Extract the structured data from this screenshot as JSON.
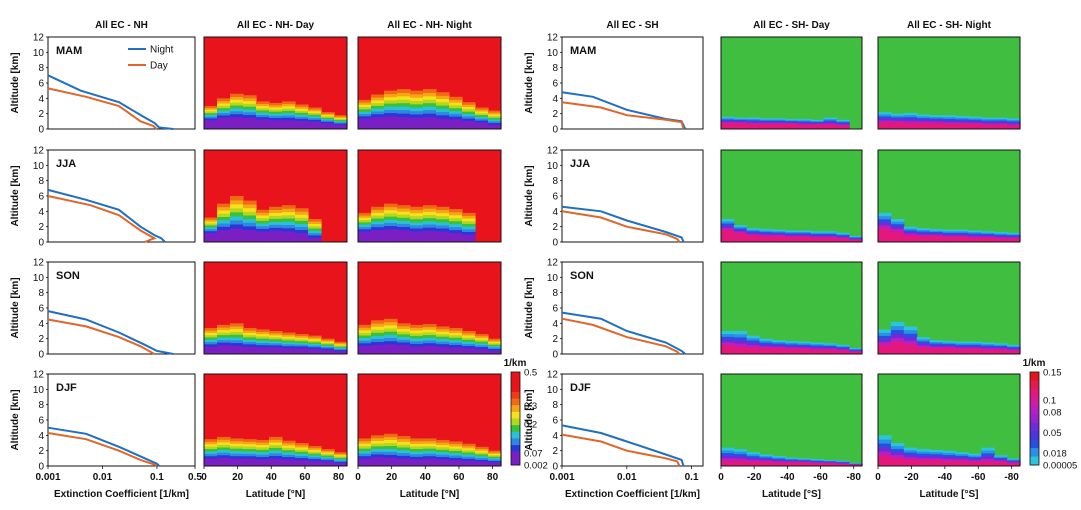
{
  "chart_data": {
    "type": "multi-panel",
    "colors": {
      "night": "#1f6fc2",
      "day": "#e0662a",
      "heat_low": "#8a1ccc",
      "heat_high": "#e8131b",
      "sh_high": "#3fbe3f"
    },
    "columns": [
      {
        "title": "All EC - NH",
        "kind": "profile"
      },
      {
        "title": "All EC - NH- Day",
        "kind": "heatmap"
      },
      {
        "title": "All EC - NH- Night",
        "kind": "heatmap"
      },
      {
        "title": "All EC - SH",
        "kind": "profile"
      },
      {
        "title": "All EC - SH- Day",
        "kind": "heatmap"
      },
      {
        "title": "All EC - SH- Night",
        "kind": "heatmap"
      }
    ],
    "seasons": [
      "MAM",
      "JJA",
      "SON",
      "DJF"
    ],
    "y_axis": {
      "label": "Altitude [km]",
      "range": [
        0,
        12
      ],
      "ticks": [
        "0",
        "2",
        "4",
        "6",
        "8",
        "10",
        "12"
      ]
    },
    "legend": {
      "night": "Night",
      "day": "Day",
      "position": "top-right"
    },
    "nh_profile_axis": {
      "xlabel": "Extinction Coefficient   [1/km]",
      "scale": "log",
      "range": [
        0.001,
        0.5
      ],
      "ticks": [
        "0.001",
        "0.01",
        "0.1",
        "0.5"
      ]
    },
    "sh_profile_axis": {
      "xlabel": "Extinction Coefficient   [1/km]",
      "scale": "log",
      "range": [
        0.001,
        0.15
      ],
      "ticks": [
        "0.001",
        "0.01",
        "0.1"
      ]
    },
    "nh_lat_axis": {
      "xlabel": "Latitude [°N]",
      "range": [
        0,
        85
      ],
      "ticks": [
        "0",
        "20",
        "40",
        "60",
        "80"
      ]
    },
    "sh_lat_axis": {
      "xlabel": "Latitude [°S]",
      "range": [
        0,
        -85
      ],
      "ticks": [
        "0",
        "-20",
        "-40",
        "-60",
        "-80"
      ]
    },
    "nh_colorbar": {
      "unit": "1/km",
      "ticks": [
        "0.5",
        "0.3",
        "0.2",
        "0.07",
        "0.002"
      ]
    },
    "sh_colorbar": {
      "unit": "1/km",
      "ticks": [
        "0.15",
        "0.1",
        "0.08",
        "0.05",
        "0.018",
        "0.00005"
      ]
    },
    "nh_profiles": [
      {
        "night": [
          [
            0.001,
            7.0
          ],
          [
            0.004,
            5.0
          ],
          [
            0.02,
            3.5
          ],
          [
            0.06,
            1.5
          ],
          [
            0.09,
            0.8
          ],
          [
            0.11,
            0.2
          ],
          [
            0.2,
            0.0
          ]
        ],
        "day": [
          [
            0.001,
            5.3
          ],
          [
            0.005,
            4.2
          ],
          [
            0.02,
            3.0
          ],
          [
            0.05,
            1.0
          ],
          [
            0.085,
            0.4
          ],
          [
            0.1,
            0.0
          ]
        ]
      },
      {
        "night": [
          [
            0.001,
            6.8
          ],
          [
            0.005,
            5.5
          ],
          [
            0.02,
            4.2
          ],
          [
            0.05,
            2.0
          ],
          [
            0.09,
            0.9
          ],
          [
            0.12,
            0.5
          ],
          [
            0.14,
            0.0
          ]
        ],
        "day": [
          [
            0.001,
            6.0
          ],
          [
            0.006,
            4.8
          ],
          [
            0.02,
            3.5
          ],
          [
            0.05,
            1.5
          ],
          [
            0.09,
            0.5
          ],
          [
            0.06,
            0.0
          ]
        ]
      },
      {
        "night": [
          [
            0.001,
            5.6
          ],
          [
            0.005,
            4.5
          ],
          [
            0.02,
            2.8
          ],
          [
            0.06,
            1.2
          ],
          [
            0.1,
            0.4
          ],
          [
            0.2,
            0.0
          ]
        ],
        "day": [
          [
            0.001,
            4.5
          ],
          [
            0.005,
            3.6
          ],
          [
            0.02,
            2.2
          ],
          [
            0.05,
            1.0
          ],
          [
            0.08,
            0.2
          ],
          [
            0.09,
            0.0
          ]
        ]
      },
      {
        "night": [
          [
            0.001,
            5.0
          ],
          [
            0.005,
            4.2
          ],
          [
            0.02,
            2.5
          ],
          [
            0.06,
            1.0
          ],
          [
            0.1,
            0.3
          ],
          [
            0.11,
            0.0
          ]
        ],
        "day": [
          [
            0.001,
            4.3
          ],
          [
            0.005,
            3.5
          ],
          [
            0.02,
            2.0
          ],
          [
            0.05,
            0.8
          ],
          [
            0.09,
            0.2
          ],
          [
            0.1,
            0.0
          ]
        ]
      }
    ],
    "sh_profiles": [
      {
        "night": [
          [
            0.001,
            4.8
          ],
          [
            0.003,
            4.2
          ],
          [
            0.01,
            2.5
          ],
          [
            0.04,
            1.3
          ],
          [
            0.07,
            1.0
          ],
          [
            0.08,
            0.0
          ]
        ],
        "day": [
          [
            0.001,
            3.5
          ],
          [
            0.004,
            2.8
          ],
          [
            0.01,
            1.8
          ],
          [
            0.04,
            1.2
          ],
          [
            0.07,
            0.9
          ],
          [
            0.075,
            0.0
          ]
        ]
      },
      {
        "night": [
          [
            0.001,
            4.6
          ],
          [
            0.004,
            4.0
          ],
          [
            0.01,
            2.8
          ],
          [
            0.04,
            1.3
          ],
          [
            0.07,
            0.6
          ],
          [
            0.075,
            0.0
          ]
        ],
        "day": [
          [
            0.001,
            4.0
          ],
          [
            0.004,
            3.2
          ],
          [
            0.01,
            2.0
          ],
          [
            0.04,
            1.0
          ],
          [
            0.06,
            0.4
          ],
          [
            0.065,
            0.0
          ]
        ]
      },
      {
        "night": [
          [
            0.001,
            5.4
          ],
          [
            0.004,
            4.6
          ],
          [
            0.01,
            3.0
          ],
          [
            0.04,
            1.5
          ],
          [
            0.07,
            0.4
          ],
          [
            0.08,
            0.0
          ]
        ],
        "day": [
          [
            0.001,
            4.6
          ],
          [
            0.003,
            3.8
          ],
          [
            0.01,
            2.2
          ],
          [
            0.04,
            1.0
          ],
          [
            0.06,
            0.3
          ],
          [
            0.065,
            0.0
          ]
        ]
      },
      {
        "night": [
          [
            0.001,
            5.3
          ],
          [
            0.004,
            4.3
          ],
          [
            0.01,
            3.2
          ],
          [
            0.04,
            1.5
          ],
          [
            0.07,
            0.8
          ],
          [
            0.075,
            0.0
          ]
        ],
        "day": [
          [
            0.001,
            4.1
          ],
          [
            0.004,
            3.2
          ],
          [
            0.01,
            2.0
          ],
          [
            0.04,
            1.0
          ],
          [
            0.06,
            0.6
          ],
          [
            0.065,
            0.0
          ]
        ]
      }
    ],
    "heat_panels": {
      "nh_day": [
        {
          "layer_top_km": [
            3.0,
            4.0,
            4.6,
            4.4,
            3.6,
            3.4,
            3.6,
            3.2,
            2.8,
            2.2,
            1.8
          ],
          "low_top_km": [
            1.2,
            1.5,
            1.6,
            1.5,
            1.3,
            1.2,
            1.2,
            1.1,
            1.0,
            0.8,
            0.6
          ]
        },
        {
          "layer_top_km": [
            3.2,
            5.0,
            6.0,
            5.4,
            4.2,
            4.6,
            4.8,
            4.4,
            3.0,
            0.0,
            0.0
          ],
          "low_top_km": [
            1.2,
            1.6,
            1.8,
            1.6,
            1.4,
            1.5,
            1.4,
            1.2,
            0.6,
            0.0,
            0.0
          ]
        },
        {
          "layer_top_km": [
            3.4,
            3.8,
            4.0,
            3.4,
            3.2,
            3.0,
            2.8,
            2.6,
            2.4,
            2.0,
            1.6
          ],
          "low_top_km": [
            1.0,
            1.2,
            1.1,
            1.0,
            0.9,
            0.9,
            0.8,
            0.8,
            0.7,
            0.6,
            0.4
          ]
        },
        {
          "layer_top_km": [
            3.5,
            3.8,
            3.6,
            3.5,
            3.4,
            3.8,
            3.3,
            3.0,
            2.6,
            2.2,
            1.8
          ],
          "low_top_km": [
            1.0,
            1.1,
            1.0,
            1.0,
            0.9,
            1.0,
            0.9,
            0.8,
            0.7,
            0.6,
            0.4
          ]
        }
      ],
      "nh_night": [
        {
          "layer_top_km": [
            3.8,
            4.5,
            5.0,
            5.2,
            5.0,
            5.2,
            4.8,
            4.2,
            3.5,
            2.8,
            2.4
          ],
          "low_top_km": [
            1.4,
            1.6,
            1.7,
            1.6,
            1.5,
            1.6,
            1.4,
            1.3,
            1.1,
            0.9,
            0.6
          ]
        },
        {
          "layer_top_km": [
            3.8,
            4.6,
            5.0,
            4.8,
            4.6,
            4.8,
            4.6,
            4.3,
            3.8,
            0.0,
            0.0
          ],
          "low_top_km": [
            1.4,
            1.6,
            1.7,
            1.6,
            1.4,
            1.5,
            1.4,
            1.2,
            1.0,
            0.0,
            0.0
          ]
        },
        {
          "layer_top_km": [
            3.8,
            4.4,
            4.6,
            4.0,
            3.8,
            3.9,
            3.6,
            3.4,
            3.0,
            2.6,
            2.0
          ],
          "low_top_km": [
            1.1,
            1.2,
            1.3,
            1.2,
            1.0,
            1.1,
            1.0,
            0.9,
            0.8,
            0.7,
            0.5
          ]
        },
        {
          "layer_top_km": [
            3.6,
            4.0,
            4.2,
            3.9,
            3.6,
            3.6,
            3.4,
            3.2,
            2.9,
            2.5,
            2.0
          ],
          "low_top_km": [
            1.0,
            1.2,
            1.1,
            1.0,
            0.9,
            1.0,
            0.9,
            0.8,
            0.7,
            0.6,
            0.5
          ]
        }
      ],
      "sh_day": [
        {
          "layer_top_km": [
            1.6,
            1.5,
            1.5,
            1.4,
            1.4,
            1.3,
            1.3,
            1.2,
            1.5,
            1.2,
            0.0
          ],
          "low_top_km": [
            0.8,
            0.8,
            0.7,
            0.7,
            0.7,
            0.7,
            0.6,
            0.6,
            0.6,
            0.5,
            0.0
          ]
        },
        {
          "layer_top_km": [
            3.0,
            2.2,
            1.8,
            1.7,
            1.6,
            1.5,
            1.5,
            1.4,
            1.4,
            1.2,
            0.8
          ],
          "low_top_km": [
            1.6,
            1.2,
            0.9,
            0.8,
            0.8,
            0.7,
            0.7,
            0.6,
            0.6,
            0.5,
            0.3
          ]
        },
        {
          "layer_top_km": [
            3.0,
            3.0,
            2.4,
            2.0,
            1.8,
            1.7,
            1.6,
            1.5,
            1.4,
            1.2,
            0.8
          ],
          "low_top_km": [
            1.2,
            1.0,
            0.9,
            0.8,
            0.8,
            0.7,
            0.7,
            0.6,
            0.6,
            0.5,
            0.3
          ]
        },
        {
          "layer_top_km": [
            2.4,
            2.2,
            1.8,
            1.5,
            1.3,
            1.1,
            1.0,
            0.9,
            0.8,
            0.7,
            0.4
          ],
          "low_top_km": [
            0.7,
            0.7,
            0.6,
            0.6,
            0.5,
            0.5,
            0.5,
            0.4,
            0.4,
            0.3,
            0.2
          ]
        }
      ],
      "sh_night": [
        {
          "layer_top_km": [
            2.2,
            2.0,
            2.1,
            1.9,
            1.8,
            1.8,
            1.7,
            1.6,
            1.5,
            1.5,
            1.4
          ],
          "low_top_km": [
            0.9,
            0.9,
            0.8,
            0.8,
            0.8,
            0.7,
            0.7,
            0.7,
            0.6,
            0.6,
            0.5
          ]
        },
        {
          "layer_top_km": [
            3.8,
            3.0,
            2.0,
            1.8,
            1.7,
            1.6,
            1.6,
            1.5,
            1.4,
            1.3,
            1.2
          ],
          "low_top_km": [
            1.8,
            1.4,
            0.9,
            0.8,
            0.8,
            0.7,
            0.7,
            0.6,
            0.6,
            0.5,
            0.5
          ]
        },
        {
          "layer_top_km": [
            3.2,
            4.2,
            3.6,
            2.2,
            1.8,
            1.7,
            1.6,
            1.6,
            1.5,
            1.4,
            1.2
          ],
          "low_top_km": [
            1.2,
            1.6,
            1.3,
            0.9,
            0.8,
            0.8,
            0.7,
            0.7,
            0.6,
            0.6,
            0.5
          ]
        },
        {
          "layer_top_km": [
            4.0,
            3.0,
            2.4,
            2.2,
            2.1,
            2.0,
            1.8,
            1.6,
            2.4,
            1.4,
            1.0
          ],
          "low_top_km": [
            1.4,
            1.1,
            0.9,
            0.8,
            0.8,
            0.7,
            0.7,
            0.6,
            0.6,
            0.6,
            0.4
          ]
        }
      ]
    }
  }
}
